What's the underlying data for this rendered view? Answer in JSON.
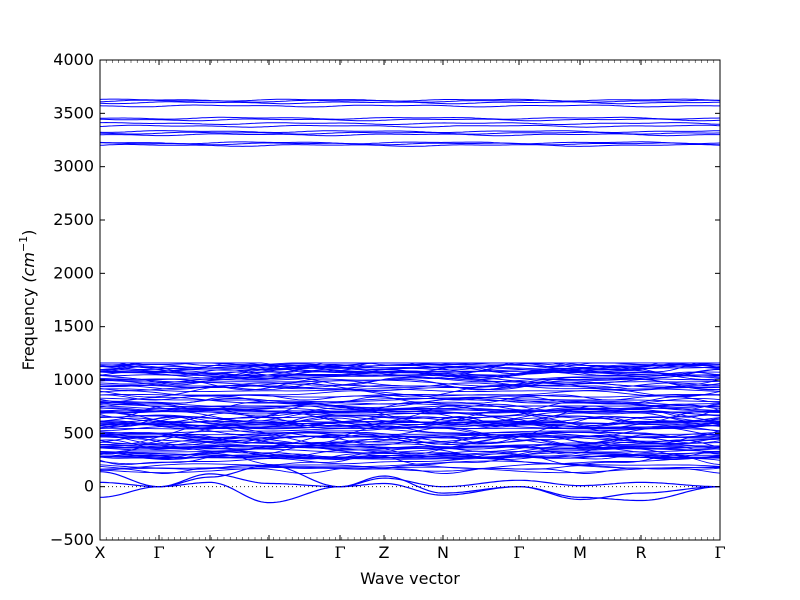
{
  "chart_data": {
    "type": "line",
    "title": "",
    "xlabel": "Wave vector",
    "ylabel_prefix": "Frequency ",
    "ylabel_unit": "(cm",
    "ylabel_unit_exp": "−1",
    "ylabel_unit_close": ")",
    "ylim": [
      -500,
      4000
    ],
    "yticks": [
      -500,
      0,
      500,
      1000,
      1500,
      2000,
      2500,
      3000,
      3500,
      4000
    ],
    "grid": false,
    "line_color": "#0000ff",
    "kpoint_labels": [
      "X",
      "Γ",
      "Y",
      "L",
      "Γ",
      "Z",
      "N",
      "Γ",
      "M",
      "R",
      "Γ"
    ],
    "kpoint_positions": [
      0,
      0.0952,
      0.1774,
      0.2726,
      0.3871,
      0.4581,
      0.5532,
      0.6758,
      0.7742,
      0.8726,
      1.0
    ],
    "band_groups": [
      {
        "name": "high-frequency",
        "range": [
          3180,
          3630
        ],
        "levels": [
          3200,
          3215,
          3225,
          3300,
          3315,
          3330,
          3380,
          3405,
          3440,
          3455,
          3570,
          3600,
          3615,
          3625
        ]
      },
      {
        "name": "mid-frequency",
        "range": [
          150,
          1160
        ],
        "count": 110
      },
      {
        "name": "acoustic",
        "branches": [
          {
            "x": [
              0,
              0.0952,
              0.1774,
              0.2726,
              0.3871,
              0.4581,
              0.5532,
              0.6758,
              0.7742,
              0.8726,
              1.0
            ],
            "y": [
              -100,
              0,
              90,
              200,
              0,
              80,
              0,
              60,
              10,
              40,
              0
            ]
          },
          {
            "x": [
              0,
              0.0952,
              0.1774,
              0.2726,
              0.3871,
              0.4581,
              0.5532,
              0.6758,
              0.7742,
              0.8726,
              1.0
            ],
            "y": [
              40,
              0,
              40,
              -150,
              0,
              30,
              -80,
              0,
              -100,
              -130,
              0
            ]
          },
          {
            "x": [
              0,
              0.0952,
              0.1774,
              0.2726,
              0.3871,
              0.4581,
              0.5532,
              0.6758,
              0.7742,
              0.8726,
              1.0
            ],
            "y": [
              140,
              0,
              120,
              30,
              0,
              100,
              -60,
              0,
              -120,
              -60,
              0
            ]
          }
        ]
      }
    ]
  }
}
